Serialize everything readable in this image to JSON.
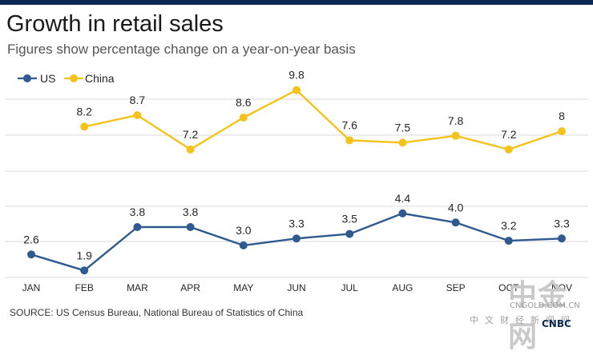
{
  "header": {
    "title": "Growth in retail sales",
    "subtitle": "Figures show percentage change on a year-on-year basis"
  },
  "footer": {
    "source": "SOURCE: US Census Bureau, National Bureau of Statistics of China"
  },
  "watermark": {
    "logo_text": "中金网",
    "url": "CNGOLD.COM.CN",
    "subtitle": "中文财经新闻网",
    "brand": "CNBC"
  },
  "colors": {
    "us": "#2f5a8f",
    "china": "#f5c21b",
    "grid": "#d9d9d9",
    "label": "#262626"
  },
  "chart_data": {
    "type": "line",
    "categories": [
      "JAN",
      "FEB",
      "MAR",
      "APR",
      "MAY",
      "JUN",
      "JUL",
      "AUG",
      "SEP",
      "OCT",
      "NOV"
    ],
    "series": [
      {
        "name": "US",
        "values": [
          2.6,
          1.9,
          3.8,
          3.8,
          3.0,
          3.3,
          3.5,
          4.4,
          4.0,
          3.2,
          3.3
        ],
        "labels": [
          "2.6",
          "1.9",
          "3.8",
          "3.8",
          "3.0",
          "3.3",
          "3.5",
          "4.4",
          "4.0",
          "3.2",
          "3.3"
        ]
      },
      {
        "name": "China",
        "values": [
          null,
          8.2,
          8.7,
          7.2,
          8.6,
          9.8,
          7.6,
          7.5,
          7.8,
          7.2,
          8.0
        ],
        "labels": [
          "",
          "8.2",
          "8.7",
          "7.2",
          "8.6",
          "9.8",
          "7.6",
          "7.5",
          "7.8",
          "7.2",
          "8"
        ]
      }
    ],
    "title": "Growth in retail sales",
    "legend": "top-left",
    "grid": true
  }
}
